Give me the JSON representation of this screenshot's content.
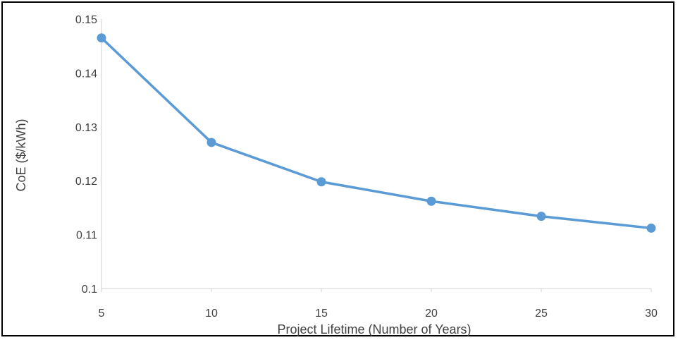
{
  "chart_data": {
    "type": "line",
    "title": "",
    "xlabel": "Project Lifetime (Number of Years)",
    "ylabel": "CoE ($/kWh)",
    "x": [
      5,
      10,
      15,
      20,
      25,
      30
    ],
    "x_tick_labels": [
      "5",
      "10",
      "15",
      "20",
      "25",
      "30"
    ],
    "ylim": [
      0.1,
      0.15
    ],
    "y_ticks": [
      0.1,
      0.11,
      0.12,
      0.13,
      0.14,
      0.15
    ],
    "y_tick_labels": [
      "0.1",
      "0.11",
      "0.12",
      "0.13",
      "0.14",
      "0.15"
    ],
    "grid": false,
    "legend": "none",
    "series": [
      {
        "color": "#5B9BD5",
        "values": [
          0.1465,
          0.1271,
          0.1198,
          0.1162,
          0.1134,
          0.1112
        ]
      }
    ]
  }
}
